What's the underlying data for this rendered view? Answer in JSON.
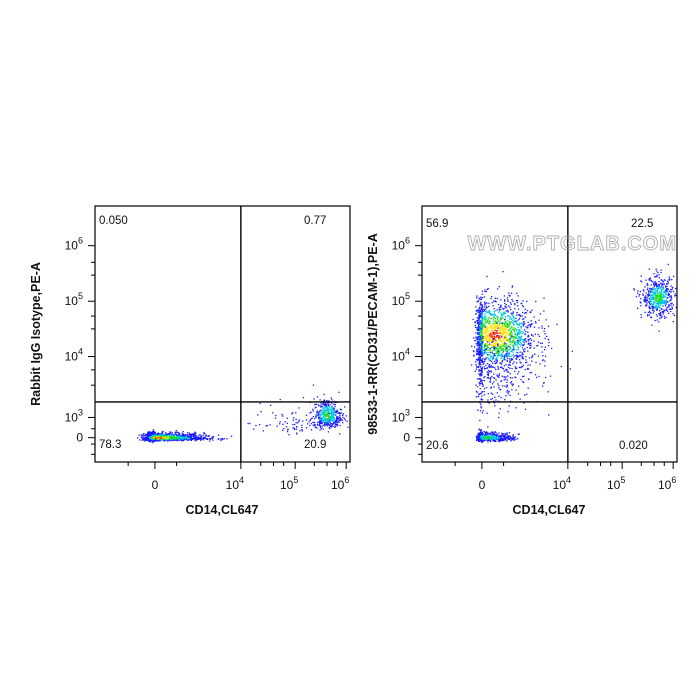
{
  "watermark": "WWW.PTGLAB.COM",
  "colors": {
    "low": "#1a1aff",
    "mid": "#00c8e0",
    "mid2": "#22dd22",
    "high": "#ffe000",
    "peak": "#ff2000"
  },
  "chart_data": [
    {
      "type": "scatter",
      "name": "isotype-control",
      "xlabel": "CD14,CL647",
      "ylabel": "Rabbit IgG Isotype,PE-A",
      "x_ticks": [
        {
          "base": "0",
          "exp": ""
        },
        {
          "base": "10",
          "exp": "4"
        },
        {
          "base": "10",
          "exp": "5"
        },
        {
          "base": "10",
          "exp": "6"
        }
      ],
      "y_ticks": [
        {
          "base": "0",
          "exp": ""
        },
        {
          "base": "10",
          "exp": "3"
        },
        {
          "base": "10",
          "exp": "4"
        },
        {
          "base": "10",
          "exp": "5"
        },
        {
          "base": "10",
          "exp": "6"
        }
      ],
      "gate": {
        "x": 10000,
        "y": 1800
      },
      "quadrants": {
        "upper_left": "0.050",
        "upper_right": "0.77",
        "lower_left": "78.3",
        "lower_right": "20.9"
      },
      "populations": [
        {
          "cx": 0,
          "cy": 0,
          "sx": 2800,
          "sy": 130,
          "n": 1700,
          "density": "high"
        },
        {
          "cx": 420000,
          "cy": 1100,
          "sx": 0.14,
          "sy": 0.14,
          "n": 420,
          "density": "mid",
          "log": true
        },
        {
          "cx": 90000,
          "cy": 700,
          "sx": 0.4,
          "sy": 0.2,
          "n": 90,
          "density": "low",
          "log": true
        }
      ]
    },
    {
      "type": "scatter",
      "name": "cd31-stain",
      "xlabel": "CD14,CL647",
      "ylabel": "98533-1-RR(CD31/PECAM-1),PE-A",
      "x_ticks": [
        {
          "base": "0",
          "exp": ""
        },
        {
          "base": "10",
          "exp": "4"
        },
        {
          "base": "10",
          "exp": "5"
        },
        {
          "base": "10",
          "exp": "6"
        }
      ],
      "y_ticks": [
        {
          "base": "0",
          "exp": ""
        },
        {
          "base": "10",
          "exp": "3"
        },
        {
          "base": "10",
          "exp": "4"
        },
        {
          "base": "10",
          "exp": "5"
        },
        {
          "base": "10",
          "exp": "6"
        }
      ],
      "gate": {
        "x": 10000,
        "y": 1800
      },
      "quadrants": {
        "upper_left": "56.9",
        "upper_right": "22.5",
        "lower_left": "20.6",
        "lower_right": "0.020"
      },
      "populations": [
        {
          "cx": 1500,
          "cy": 25000,
          "sx": 2400,
          "sy": 0.32,
          "n": 1500,
          "density": "high",
          "logy": true
        },
        {
          "cx": 300,
          "cy": 0,
          "sx": 1600,
          "sy": 150,
          "n": 650,
          "density": "mid"
        },
        {
          "cx": 500000,
          "cy": 120000,
          "sx": 0.16,
          "sy": 0.18,
          "n": 520,
          "density": "mid",
          "log": true
        },
        {
          "cx": 1500,
          "cy": 6000,
          "sx": 2600,
          "sy": 0.35,
          "n": 350,
          "density": "low",
          "logy": true
        }
      ]
    }
  ]
}
